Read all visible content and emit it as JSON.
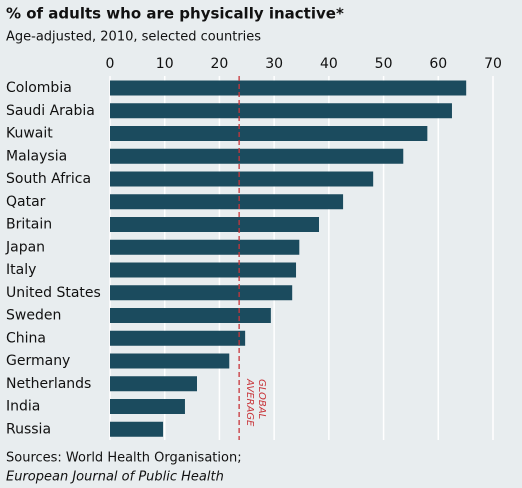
{
  "chart_data": {
    "type": "hbar",
    "title": "% of adults who are physically inactive*",
    "subtitle": "Age-adjusted, 2010, selected countries",
    "categories": [
      "Colombia",
      "Saudi Arabia",
      "Kuwait",
      "Malaysia",
      "South Africa",
      "Qatar",
      "Britain",
      "Japan",
      "Italy",
      "United States",
      "Sweden",
      "China",
      "Germany",
      "Netherlands",
      "India",
      "Russia"
    ],
    "values": [
      65.1,
      62.5,
      58,
      53.6,
      48.1,
      42.6,
      38.2,
      34.6,
      34,
      33.3,
      29.4,
      24.7,
      21.8,
      15.9,
      13.7,
      9.7
    ],
    "color": "#1b4b5e",
    "xlim": [
      0,
      70
    ],
    "xticks": [
      0,
      10,
      20,
      30,
      40,
      50,
      60,
      70
    ],
    "grid": true,
    "reference_line": {
      "value": 23.6,
      "label_lines": [
        "GLOBAL",
        "AVERAGE"
      ],
      "color": "#c8353a"
    },
    "sources": [
      "Sources: World Health Organisation;",
      "European Journal of Public Health"
    ]
  }
}
